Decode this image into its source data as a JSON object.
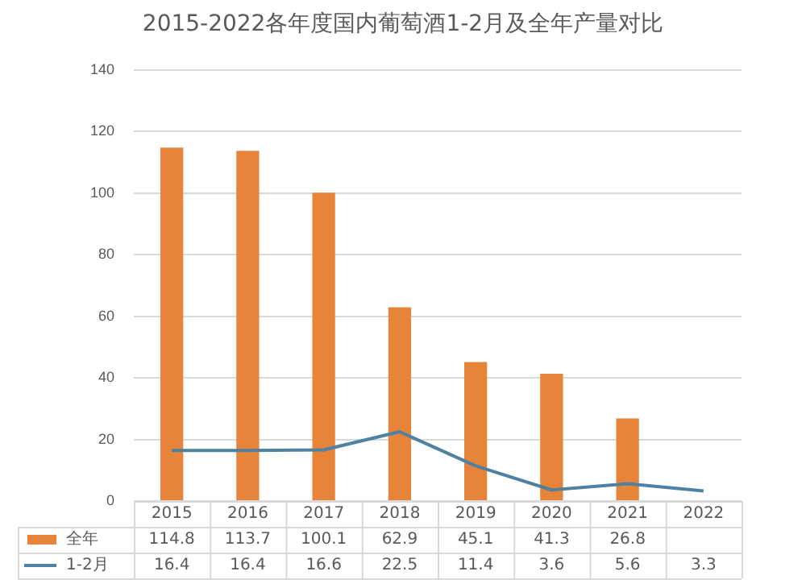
{
  "chart_data": {
    "type": "bar",
    "title": "2015-2022各年度国内葡萄酒1-2月及全年产量对比",
    "categories": [
      "2015",
      "2016",
      "2017",
      "2018",
      "2019",
      "2020",
      "2021",
      "2022"
    ],
    "series": [
      {
        "name": "全年",
        "color": "#e8833a",
        "values": [
          114.8,
          113.7,
          100.1,
          62.9,
          45.1,
          41.3,
          26.8,
          null
        ]
      },
      {
        "name": "1-2月",
        "type": "line",
        "color": "#4f81a0",
        "values": [
          16.4,
          16.4,
          16.6,
          22.5,
          11.4,
          3.6,
          5.6,
          3.3
        ]
      }
    ],
    "ylim": [
      0,
      140
    ],
    "yticks": [
      0,
      20,
      40,
      60,
      80,
      100,
      120,
      140
    ],
    "grid": "y",
    "legend": "bottom",
    "data_labels": true,
    "marker": "none"
  }
}
